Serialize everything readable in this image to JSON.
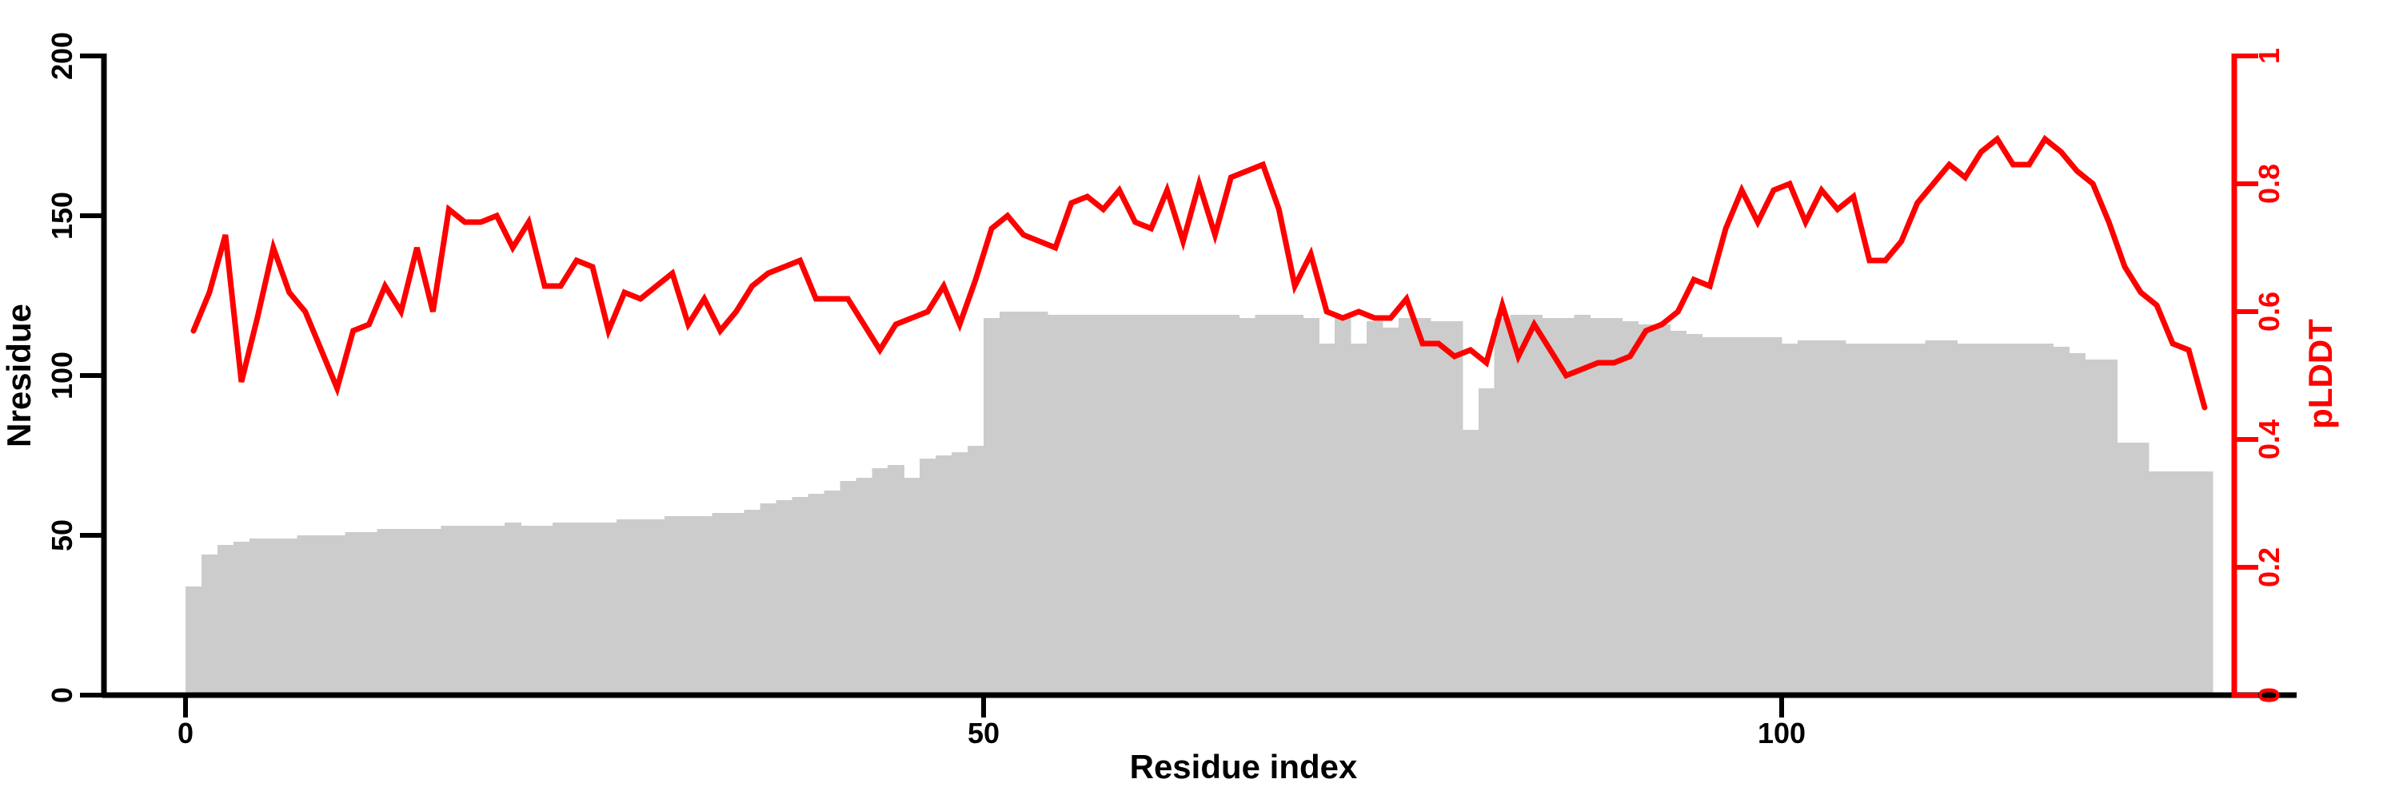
{
  "page": {
    "background": "#ffffff"
  },
  "figure": {
    "title": "",
    "x_axis": {
      "label": "Residue index",
      "tick_labels": [
        "0",
        "50",
        "100"
      ],
      "tick_values": [
        0,
        50,
        100
      ]
    },
    "left_axis": {
      "label": "Nresidue",
      "tick_labels": [
        "0",
        "50",
        "100",
        "150",
        "200"
      ],
      "tick_values": [
        0,
        50,
        100,
        150,
        200
      ],
      "range": [
        0,
        200
      ],
      "color": "#000000"
    },
    "right_axis": {
      "label": "pLDDT",
      "tick_labels": [
        "0",
        "0.2",
        "0.4",
        "0.6",
        "0.8",
        "1"
      ],
      "tick_values": [
        0,
        0.2,
        0.4,
        0.6,
        0.8,
        1
      ],
      "range": [
        0,
        1
      ],
      "color": "#ff0000"
    }
  },
  "chart_data": {
    "type": "bar+line",
    "title": "",
    "xlabel": "Residue index",
    "ylabel_left": "Nresidue",
    "ylabel_right": "pLDDT",
    "x_start": 1,
    "x_step": 1,
    "n_points": 127,
    "xlim": [
      -5,
      132
    ],
    "ylim_left": [
      0,
      200
    ],
    "ylim_right": [
      0,
      1
    ],
    "grid": false,
    "legend": false,
    "series": [
      {
        "name": "Nresidue",
        "type": "bar",
        "axis": "left",
        "color": "#cccccc",
        "values": [
          34,
          44,
          47,
          48,
          49,
          49,
          49,
          50,
          50,
          50,
          51,
          51,
          52,
          52,
          52,
          52,
          53,
          53,
          53,
          53,
          54,
          53,
          53,
          54,
          54,
          54,
          54,
          55,
          55,
          55,
          56,
          56,
          56,
          57,
          57,
          58,
          60,
          61,
          62,
          63,
          64,
          67,
          68,
          71,
          72,
          68,
          74,
          75,
          76,
          78,
          118,
          120,
          120,
          120,
          119,
          119,
          119,
          119,
          119,
          119,
          119,
          119,
          119,
          119,
          119,
          119,
          118,
          119,
          119,
          119,
          118,
          110,
          118,
          110,
          117,
          115,
          118,
          118,
          117,
          117,
          83,
          96,
          118,
          119,
          119,
          118,
          118,
          119,
          118,
          118,
          117,
          116,
          116,
          114,
          113,
          112,
          112,
          112,
          112,
          112,
          110,
          111,
          111,
          111,
          110,
          110,
          110,
          110,
          110,
          111,
          111,
          110,
          110,
          110,
          110,
          110,
          110,
          109,
          107,
          105,
          105,
          79,
          79,
          70,
          70,
          70,
          70
        ]
      },
      {
        "name": "pLDDT",
        "type": "line",
        "axis": "right",
        "color": "#ff0000",
        "values": [
          0.57,
          0.63,
          0.72,
          0.49,
          0.59,
          0.7,
          0.63,
          0.6,
          0.54,
          0.48,
          0.57,
          0.58,
          0.64,
          0.6,
          0.7,
          0.6,
          0.76,
          0.74,
          0.74,
          0.75,
          0.7,
          0.74,
          0.64,
          0.64,
          0.68,
          0.67,
          0.57,
          0.63,
          0.62,
          0.64,
          0.66,
          0.58,
          0.62,
          0.57,
          0.6,
          0.64,
          0.66,
          0.67,
          0.68,
          0.62,
          0.62,
          0.62,
          0.58,
          0.54,
          0.58,
          0.59,
          0.6,
          0.64,
          0.58,
          0.65,
          0.73,
          0.75,
          0.72,
          0.71,
          0.7,
          0.77,
          0.78,
          0.76,
          0.79,
          0.74,
          0.73,
          0.79,
          0.71,
          0.8,
          0.72,
          0.81,
          0.82,
          0.83,
          0.76,
          0.64,
          0.69,
          0.6,
          0.59,
          0.6,
          0.59,
          0.59,
          0.62,
          0.55,
          0.55,
          0.53,
          0.54,
          0.52,
          0.61,
          0.53,
          0.58,
          0.54,
          0.5,
          0.51,
          0.52,
          0.52,
          0.53,
          0.57,
          0.58,
          0.6,
          0.65,
          0.64,
          0.73,
          0.79,
          0.74,
          0.79,
          0.8,
          0.74,
          0.79,
          0.76,
          0.78,
          0.68,
          0.68,
          0.71,
          0.77,
          0.8,
          0.83,
          0.81,
          0.85,
          0.87,
          0.83,
          0.83,
          0.87,
          0.85,
          0.82,
          0.8,
          0.74,
          0.67,
          0.63,
          0.61,
          0.55,
          0.54,
          0.45
        ]
      }
    ]
  }
}
